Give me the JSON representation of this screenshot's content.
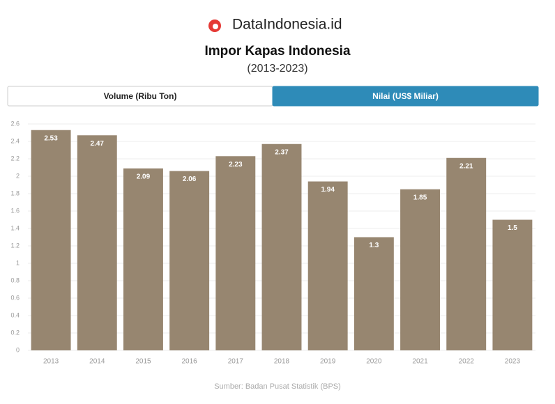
{
  "brand": "DataIndonesia.id",
  "tabs": [
    "Volume (Ribu Ton)",
    "Nilai (US$ Miliar)"
  ],
  "active_tab": 1,
  "chart_data": {
    "type": "bar",
    "title": "Impor Kapas Indonesia",
    "subtitle": "(2013-2023)",
    "categories": [
      "2013",
      "2014",
      "2015",
      "2016",
      "2017",
      "2018",
      "2019",
      "2020",
      "2021",
      "2022",
      "2023"
    ],
    "values": [
      2.53,
      2.47,
      2.09,
      2.06,
      2.23,
      2.37,
      1.94,
      1.3,
      1.85,
      2.21,
      1.5
    ],
    "color": "#978670",
    "ylim": [
      0,
      2.6
    ],
    "yticks": [
      0,
      0.2,
      0.4,
      0.6,
      0.8,
      1,
      1.2,
      1.4,
      1.6,
      1.8,
      2,
      2.2,
      2.4,
      2.6
    ],
    "grid": true,
    "source": "Sumber: Badan Pusat Statistik (BPS)"
  }
}
